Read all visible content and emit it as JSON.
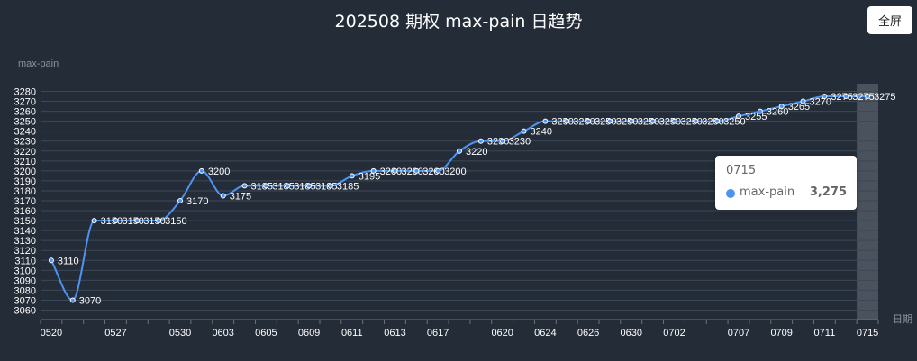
{
  "title": "202508 期权 max-pain 日趋势",
  "fullscreen_label": "全屏",
  "colors": {
    "background": "#242c38",
    "line": "#4e93f2",
    "grid": "#3c4757",
    "axis_text": "#ffffff",
    "axis_name": "#8a93a0",
    "hover_band": "#5b646e"
  },
  "tooltip": {
    "header": "0715",
    "series_name": "max-pain",
    "value": "3,275"
  },
  "chart_data": {
    "type": "line",
    "title": "202508 期权 max-pain 日趋势",
    "ylabel": "max-pain",
    "xlabel": "日期",
    "ylim": [
      3060,
      3280
    ],
    "y_interval": 10,
    "grid": true,
    "smooth": true,
    "x_tick_labels": [
      "0520",
      "0527",
      "0530",
      "0603",
      "0605",
      "0609",
      "0611",
      "0613",
      "0617",
      "0620",
      "0624",
      "0626",
      "0630",
      "0702",
      "0707",
      "0709",
      "0711",
      "0715"
    ],
    "series": [
      {
        "name": "max-pain",
        "x": [
          "0520",
          "0523",
          "0526",
          "0527",
          "0528",
          "0529",
          "0530",
          "0602",
          "0603",
          "0604",
          "0605",
          "0606",
          "0609",
          "0610",
          "0611",
          "0612",
          "0613",
          "0616",
          "0617",
          "0618",
          "0619",
          "0620",
          "0623",
          "0624",
          "0625",
          "0626",
          "0627",
          "0630",
          "0701",
          "0702",
          "0703",
          "0704",
          "0707",
          "0708",
          "0709",
          "0710",
          "0711",
          "0714",
          "0715"
        ],
        "values": [
          3110,
          3070,
          3150,
          3150,
          3150,
          3150,
          3170,
          3200,
          3175,
          3185,
          3185,
          3185,
          3185,
          3185,
          3195,
          3200,
          3200,
          3200,
          3200,
          3220,
          3230,
          3230,
          3240,
          3250,
          3250,
          3250,
          3250,
          3250,
          3250,
          3250,
          3250,
          3250,
          3255,
          3260,
          3265,
          3270,
          3275,
          3275,
          3275
        ]
      }
    ],
    "highlighted_x": "0715"
  }
}
